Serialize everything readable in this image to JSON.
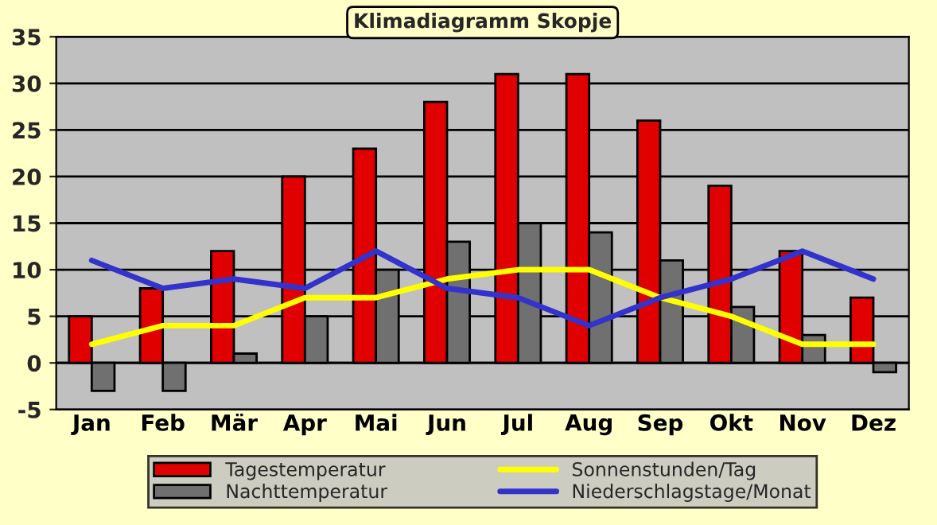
{
  "chart_data": {
    "type": "bar",
    "title": "Klimadiagramm Skopje",
    "categories": [
      "Jan",
      "Feb",
      "Mär",
      "Apr",
      "Mai",
      "Jun",
      "Jul",
      "Aug",
      "Sep",
      "Okt",
      "Nov",
      "Dez"
    ],
    "series": [
      {
        "name": "Tagestemperatur",
        "color": "#e00000",
        "values": [
          5,
          8,
          12,
          20,
          23,
          28,
          31,
          31,
          26,
          19,
          12,
          7
        ]
      },
      {
        "name": "Nachttemperatur",
        "color": "#707070",
        "values": [
          -3,
          -3,
          1,
          5,
          10,
          13,
          15,
          14,
          11,
          6,
          3,
          -1
        ]
      },
      {
        "name": "Sonnenstunden/Tag",
        "type": "line",
        "color": "#ffff00",
        "values": [
          2,
          4,
          4,
          7,
          7,
          9,
          10,
          10,
          7,
          5,
          2,
          2
        ]
      },
      {
        "name": "Niederschlagstage/Monat",
        "type": "line",
        "color": "#3333cc",
        "values": [
          11,
          8,
          9,
          8,
          12,
          8,
          7,
          4,
          7,
          9,
          12,
          9
        ]
      }
    ],
    "ylim": [
      -5,
      35
    ],
    "yticks": [
      -5,
      0,
      5,
      10,
      15,
      20,
      25,
      30,
      35
    ],
    "grid": "y",
    "legend": "bottom",
    "marker": "none",
    "line_style": "solid"
  }
}
